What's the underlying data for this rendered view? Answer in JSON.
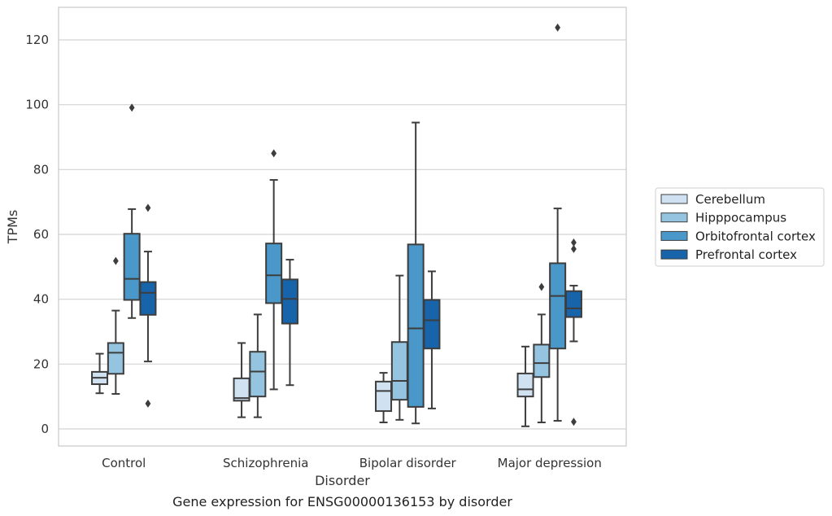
{
  "chart_data": {
    "type": "box",
    "xlabel": "Disorder",
    "ylabel": "TPMs",
    "caption": "Gene expression for ENSG00000136153 by disorder",
    "ylim": [
      -5,
      130
    ],
    "yticks": [
      0,
      20,
      40,
      60,
      80,
      100,
      120
    ],
    "grid": "horizontal",
    "legend_position": "right",
    "categories": [
      "Control",
      "Schizophrenia",
      "Bipolar disorder",
      "Major depression"
    ],
    "series": [
      {
        "name": "Cerebellum",
        "color": "#d0e1f2",
        "boxes": [
          {
            "whisker_low": 11,
            "q1": 13.8,
            "median": 15.8,
            "q3": 17.6,
            "whisker_high": 23.2,
            "outliers": []
          },
          {
            "whisker_low": 3.6,
            "q1": 8.7,
            "median": 9.5,
            "q3": 15.6,
            "whisker_high": 26.5,
            "outliers": []
          },
          {
            "whisker_low": 2,
            "q1": 5.5,
            "median": 11.7,
            "q3": 14.6,
            "whisker_high": 17.3,
            "outliers": []
          },
          {
            "whisker_low": 0.8,
            "q1": 10,
            "median": 12.2,
            "q3": 17.1,
            "whisker_high": 25.4,
            "outliers": []
          }
        ]
      },
      {
        "name": "Hipppocampus",
        "color": "#94c4df",
        "boxes": [
          {
            "whisker_low": 10.8,
            "q1": 17,
            "median": 23.5,
            "q3": 26.5,
            "whisker_high": 36.5,
            "outliers": [
              51.8
            ]
          },
          {
            "whisker_low": 3.6,
            "q1": 10,
            "median": 17.7,
            "q3": 23.8,
            "whisker_high": 35.3,
            "outliers": []
          },
          {
            "whisker_low": 2.8,
            "q1": 9,
            "median": 14.8,
            "q3": 26.8,
            "whisker_high": 47.3,
            "outliers": []
          },
          {
            "whisker_low": 2,
            "q1": 16,
            "median": 20.3,
            "q3": 26,
            "whisker_high": 35.3,
            "outliers": [
              43.8
            ]
          }
        ]
      },
      {
        "name": "Orbitofrontal cortex",
        "color": "#4a98c9",
        "boxes": [
          {
            "whisker_low": 34.2,
            "q1": 39.8,
            "median": 46.3,
            "q3": 60.2,
            "whisker_high": 67.8,
            "outliers": [
              99.1
            ]
          },
          {
            "whisker_low": 12.2,
            "q1": 38.8,
            "median": 47.4,
            "q3": 57.2,
            "whisker_high": 76.8,
            "outliers": [
              85
            ]
          },
          {
            "whisker_low": 1.7,
            "q1": 6.8,
            "median": 31,
            "q3": 56.9,
            "whisker_high": 94.5,
            "outliers": []
          },
          {
            "whisker_low": 2.5,
            "q1": 24.8,
            "median": 41,
            "q3": 51.1,
            "whisker_high": 68,
            "outliers": [
              123.8
            ]
          }
        ]
      },
      {
        "name": "Prefrontal cortex",
        "color": "#1764ab",
        "boxes": [
          {
            "whisker_low": 20.8,
            "q1": 35.2,
            "median": 42,
            "q3": 45.3,
            "whisker_high": 54.7,
            "outliers": [
              68.2,
              7.8
            ]
          },
          {
            "whisker_low": 13.5,
            "q1": 32.5,
            "median": 40.1,
            "q3": 46.1,
            "whisker_high": 52.2,
            "outliers": []
          },
          {
            "whisker_low": 6.3,
            "q1": 24.8,
            "median": 33.5,
            "q3": 39.8,
            "whisker_high": 48.6,
            "outliers": []
          },
          {
            "whisker_low": 27,
            "q1": 34.5,
            "median": 37.2,
            "q3": 42.5,
            "whisker_high": 44.2,
            "outliers": [
              57.5,
              55.5,
              2.2
            ]
          }
        ]
      }
    ]
  }
}
